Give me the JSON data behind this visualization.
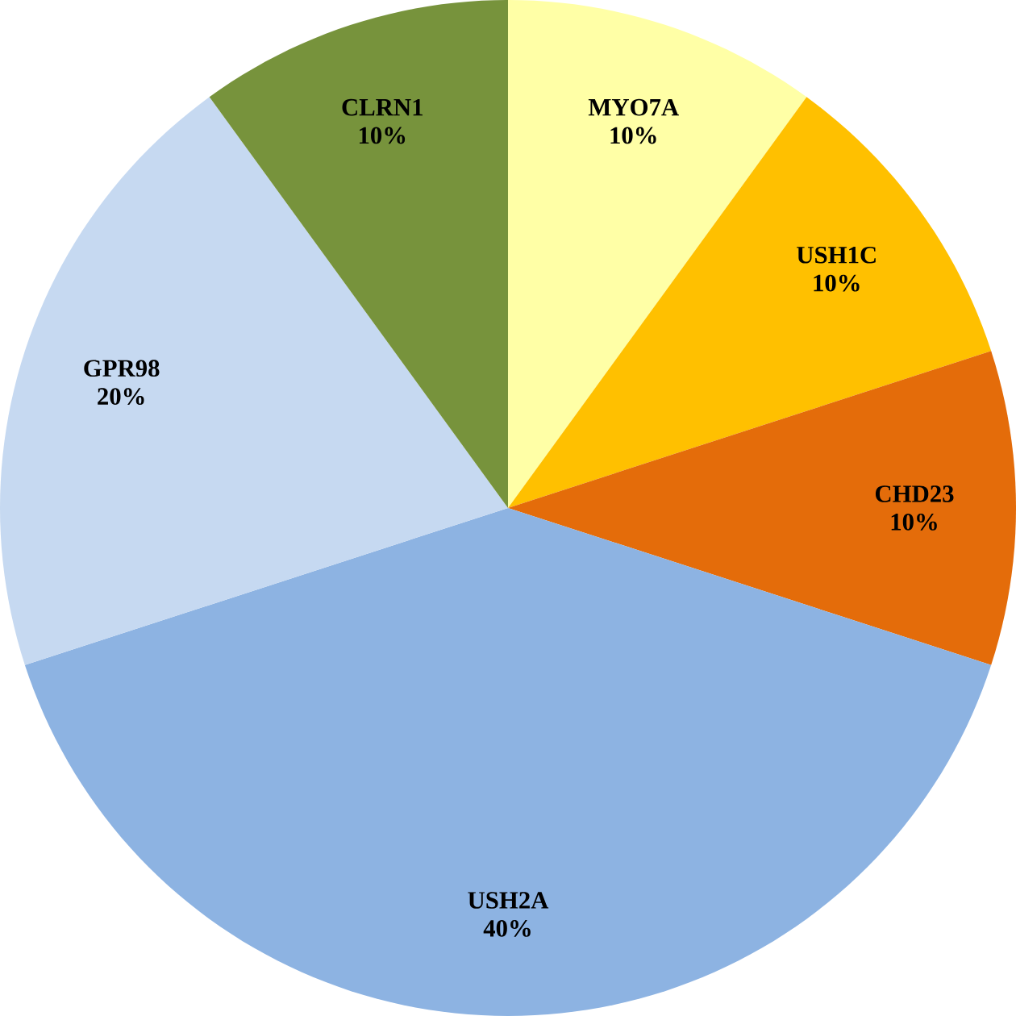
{
  "chart_data": {
    "type": "pie",
    "categories": [
      "MYO7A",
      "USH1C",
      "CHD23",
      "USH2A",
      "GPR98",
      "CLRN1"
    ],
    "values": [
      10,
      10,
      10,
      40,
      20,
      10
    ],
    "value_labels": [
      "10%",
      "10%",
      "10%",
      "40%",
      "20%",
      "10%"
    ],
    "colors": [
      "#ffffa6",
      "#ffc000",
      "#e46c0a",
      "#8db3e2",
      "#c6d9f1",
      "#77933c"
    ]
  }
}
